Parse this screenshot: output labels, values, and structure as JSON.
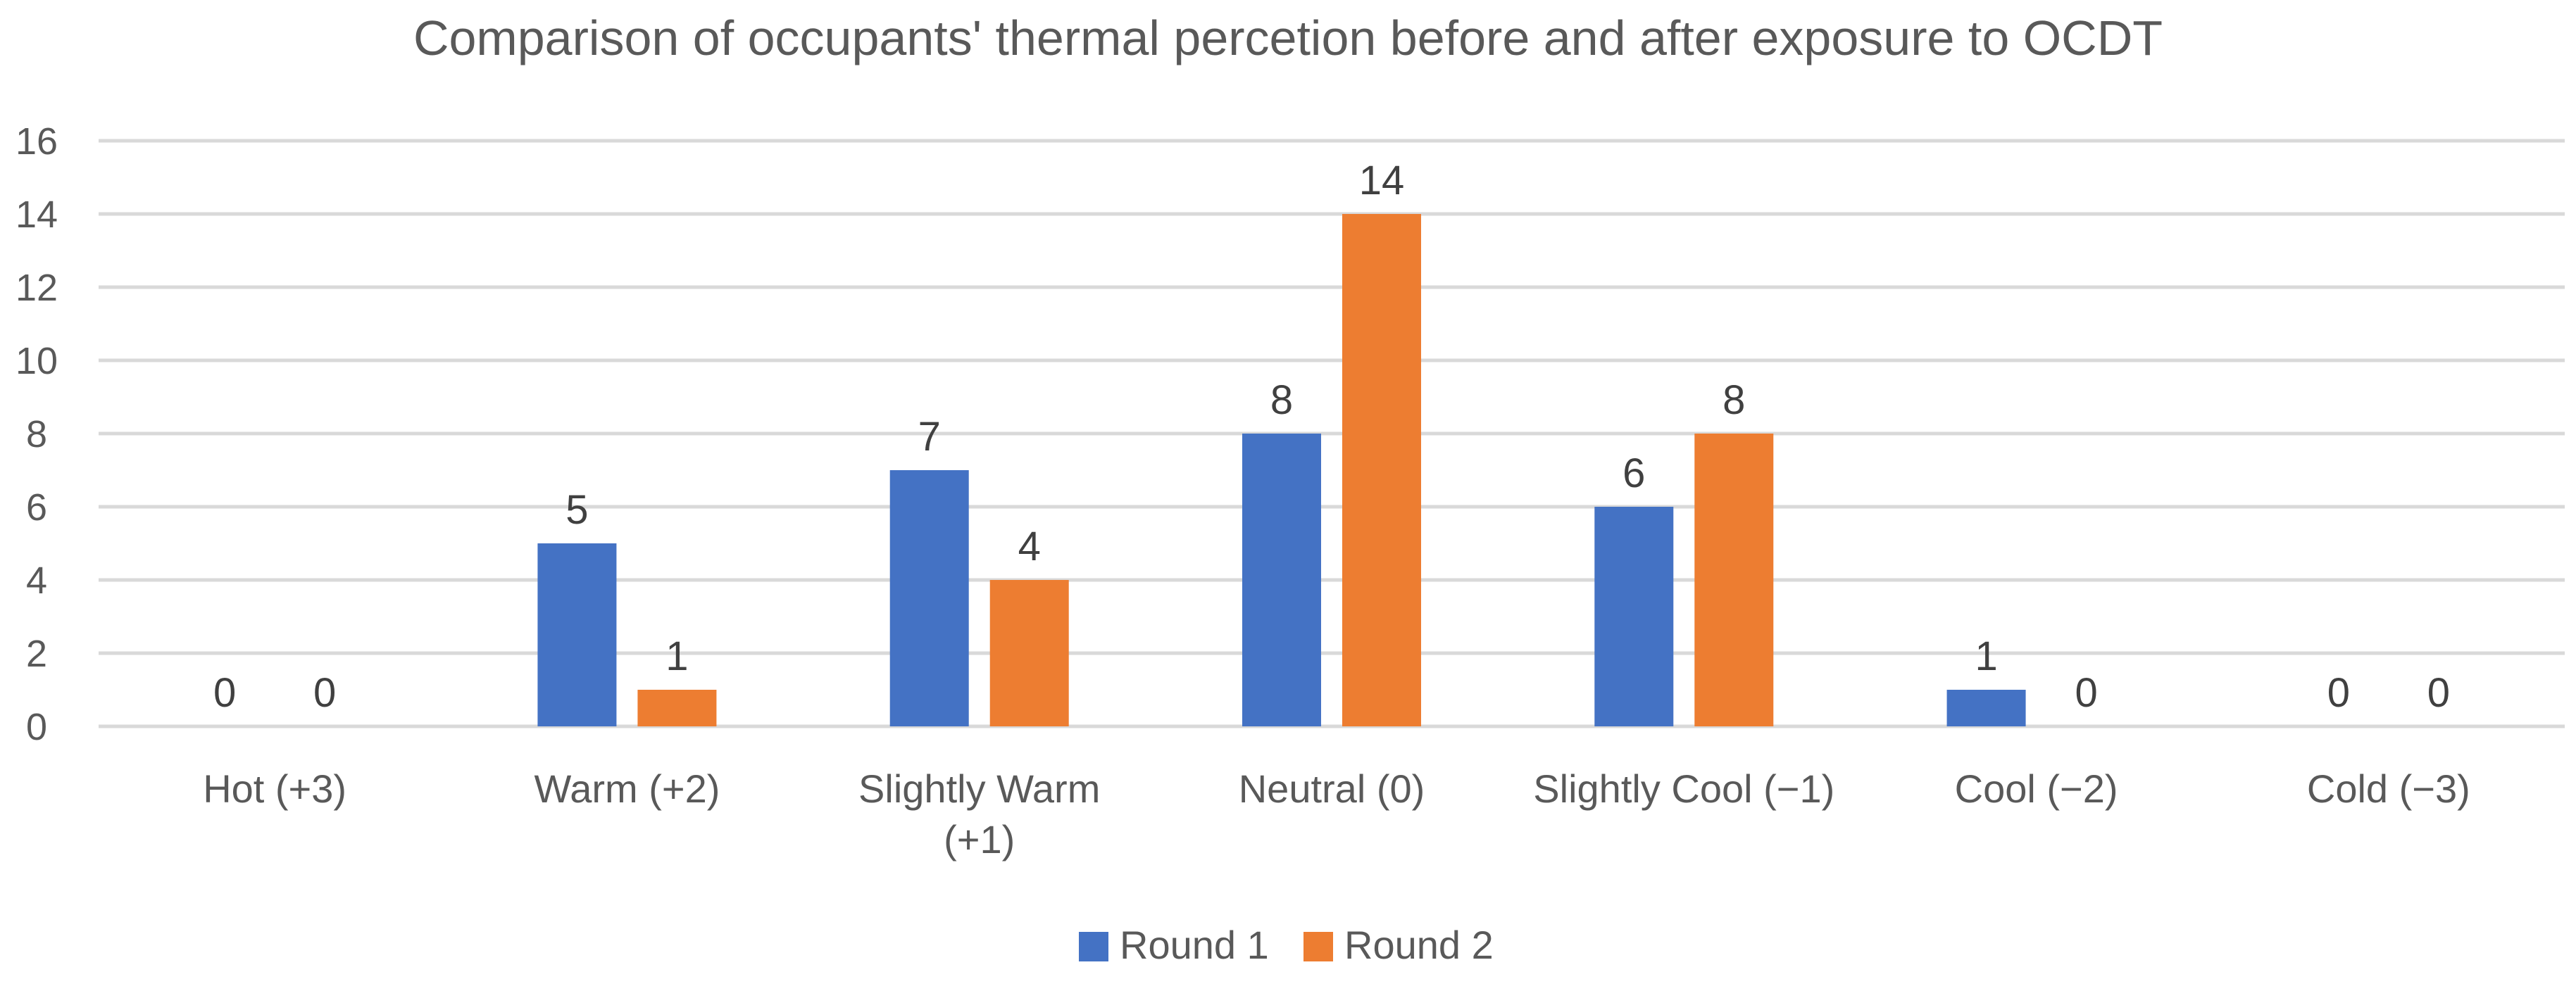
{
  "chart_data": {
    "type": "bar",
    "title": "Comparison of occupants' thermal percetion before and after exposure to OCDT",
    "categories": [
      [
        "Hot (+3)"
      ],
      [
        "Warm (+2)"
      ],
      [
        "Slightly Warm",
        "(+1)"
      ],
      [
        "Neutral (0)"
      ],
      [
        "Slightly Cool (−1)"
      ],
      [
        "Cool (−2)"
      ],
      [
        "Cold (−3)"
      ]
    ],
    "series": [
      {
        "name": "Round 1",
        "color": "#4472c4",
        "values": [
          0,
          5,
          7,
          8,
          6,
          1,
          0
        ]
      },
      {
        "name": "Round 2",
        "color": "#ed7d31",
        "values": [
          0,
          1,
          4,
          14,
          8,
          0,
          0
        ]
      }
    ],
    "ylim": [
      0,
      16
    ],
    "yticks": [
      0,
      2,
      4,
      6,
      8,
      10,
      12,
      14,
      16
    ],
    "xlabel": "",
    "ylabel": "",
    "grid": true,
    "legend_position": "bottom-center"
  }
}
